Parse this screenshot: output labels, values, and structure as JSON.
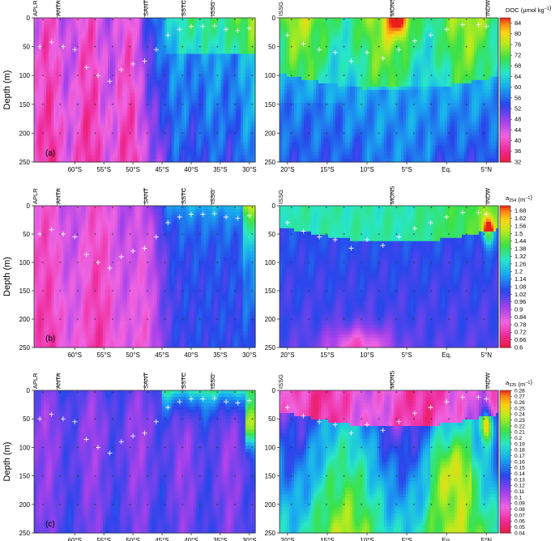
{
  "figure": {
    "ylabel": "Depth (m)",
    "depth_ticks": [
      0,
      50,
      100,
      150,
      200,
      250
    ]
  },
  "chart_data": [
    {
      "type": "heatmap",
      "panel": "(a)",
      "variable": "DOC",
      "colorbar_label_parts": [
        "DOC (",
        "μ",
        "mol kg",
        "−1",
        ")"
      ],
      "colorbar_ticks": [
        84,
        80,
        76,
        72,
        68,
        64,
        60,
        56,
        52,
        48,
        44,
        40,
        36,
        32
      ],
      "vmin": 32,
      "vmax": 86,
      "ylim": [
        0,
        250
      ],
      "sections": [
        {
          "name": "southern-ocean",
          "xlim": [
            -67,
            -29
          ],
          "xticks": [
            {
              "v": -60,
              "label": "60°S"
            },
            {
              "v": -55,
              "label": "55°S"
            },
            {
              "v": -50,
              "label": "50°S"
            },
            {
              "v": -45,
              "label": "45°S"
            },
            {
              "v": -40,
              "label": "40°S"
            },
            {
              "v": -35,
              "label": "35°S"
            },
            {
              "v": -30,
              "label": "30°S"
            }
          ],
          "regions": [
            {
              "label": "APLR",
              "start": -67,
              "end": -63
            },
            {
              "label": "ANTA",
              "start": -63,
              "end": -48
            },
            {
              "label": "SANT",
              "start": -48,
              "end": -41.5
            },
            {
              "label": "SSTC",
              "start": -41.5,
              "end": -36.5
            },
            {
              "label": "ISSG",
              "start": -36.5,
              "end": -29
            }
          ],
          "mld": [
            [
              -66,
              50
            ],
            [
              -64,
              42
            ],
            [
              -62,
              50
            ],
            [
              -60,
              55
            ],
            [
              -58,
              86
            ],
            [
              -56,
              100
            ],
            [
              -54,
              110
            ],
            [
              -52,
              90
            ],
            [
              -50,
              80
            ],
            [
              -48,
              75
            ],
            [
              -46,
              55
            ],
            [
              -44,
              30
            ],
            [
              -42,
              20
            ],
            [
              -40,
              15
            ],
            [
              -38,
              15
            ],
            [
              -36,
              14
            ],
            [
              -34,
              20
            ],
            [
              -32,
              22
            ],
            [
              -30,
              18
            ]
          ]
        },
        {
          "name": "indian-ocean",
          "xlim": [
            -21,
            6.5
          ],
          "xticks": [
            {
              "v": -20,
              "label": "20°S"
            },
            {
              "v": -15,
              "label": "15°S"
            },
            {
              "v": -10,
              "label": "10°S"
            },
            {
              "v": -5,
              "label": "5°S"
            },
            {
              "v": 0,
              "label": "Eq."
            },
            {
              "v": 5,
              "label": "5°N"
            }
          ],
          "regions": [
            {
              "label": "ISSG",
              "start": -21,
              "end": -7
            },
            {
              "label": "MONS",
              "start": -7,
              "end": 5
            },
            {
              "label": "INDW",
              "start": 5,
              "end": 6.5
            }
          ],
          "mld": [
            [
              -20,
              30
            ],
            [
              -18,
              45
            ],
            [
              -16,
              55
            ],
            [
              -14,
              60
            ],
            [
              -12,
              75
            ],
            [
              -10,
              60
            ],
            [
              -8,
              70
            ],
            [
              -6,
              55
            ],
            [
              -4,
              40
            ],
            [
              -2,
              30
            ],
            [
              0,
              20
            ],
            [
              2,
              12
            ],
            [
              4,
              12
            ],
            [
              5,
              15
            ]
          ]
        }
      ]
    },
    {
      "type": "heatmap",
      "panel": "(b)",
      "variable": "a254",
      "colorbar_label_parts": [
        "a",
        "254",
        " (m",
        "−1",
        ")"
      ],
      "colorbar_ticks": [
        1.68,
        1.62,
        1.56,
        1.5,
        1.44,
        1.38,
        1.32,
        1.26,
        1.2,
        1.14,
        1.08,
        1.02,
        0.96,
        0.9,
        0.84,
        0.78,
        0.72,
        0.66,
        0.6
      ],
      "vmin": 0.6,
      "vmax": 1.72,
      "ylim": [
        0,
        250
      ],
      "sections": [
        {
          "name": "southern-ocean",
          "xlim": [
            -67,
            -29
          ],
          "xticks": [
            {
              "v": -60,
              "label": "60°S"
            },
            {
              "v": -55,
              "label": "55°S"
            },
            {
              "v": -50,
              "label": "50°S"
            },
            {
              "v": -45,
              "label": "45°S"
            },
            {
              "v": -40,
              "label": "40°S"
            },
            {
              "v": -35,
              "label": "35°S"
            },
            {
              "v": -30,
              "label": "30°S"
            }
          ],
          "regions": [
            {
              "label": "APLR",
              "start": -67,
              "end": -63
            },
            {
              "label": "ANTA",
              "start": -63,
              "end": -48
            },
            {
              "label": "SANT",
              "start": -48,
              "end": -41.5
            },
            {
              "label": "SSTC",
              "start": -41.5,
              "end": -36.5
            },
            {
              "label": "ISSG",
              "start": -36.5,
              "end": -29
            }
          ],
          "mld": [
            [
              -66,
              50
            ],
            [
              -64,
              42
            ],
            [
              -62,
              50
            ],
            [
              -60,
              55
            ],
            [
              -58,
              86
            ],
            [
              -56,
              100
            ],
            [
              -54,
              110
            ],
            [
              -52,
              90
            ],
            [
              -50,
              80
            ],
            [
              -48,
              75
            ],
            [
              -46,
              55
            ],
            [
              -44,
              30
            ],
            [
              -42,
              20
            ],
            [
              -40,
              15
            ],
            [
              -38,
              15
            ],
            [
              -36,
              14
            ],
            [
              -34,
              20
            ],
            [
              -32,
              22
            ],
            [
              -30,
              18
            ]
          ]
        },
        {
          "name": "indian-ocean",
          "xlim": [
            -21,
            6.5
          ],
          "xticks": [
            {
              "v": -20,
              "label": "20°S"
            },
            {
              "v": -15,
              "label": "15°S"
            },
            {
              "v": -10,
              "label": "10°S"
            },
            {
              "v": -5,
              "label": "5°S"
            },
            {
              "v": 0,
              "label": "Eq."
            },
            {
              "v": 5,
              "label": "5°N"
            }
          ],
          "regions": [
            {
              "label": "ISSG",
              "start": -21,
              "end": -7
            },
            {
              "label": "MONS",
              "start": -7,
              "end": 5
            },
            {
              "label": "INDW",
              "start": 5,
              "end": 6.5
            }
          ],
          "mld": [
            [
              -20,
              30
            ],
            [
              -18,
              45
            ],
            [
              -16,
              55
            ],
            [
              -14,
              60
            ],
            [
              -12,
              75
            ],
            [
              -10,
              60
            ],
            [
              -8,
              70
            ],
            [
              -6,
              55
            ],
            [
              -4,
              40
            ],
            [
              -2,
              30
            ],
            [
              0,
              20
            ],
            [
              2,
              12
            ],
            [
              4,
              12
            ],
            [
              5,
              15
            ]
          ]
        }
      ]
    },
    {
      "type": "heatmap",
      "panel": "(c)",
      "variable": "a325",
      "colorbar_label_parts": [
        "a",
        "325",
        " (m",
        "−1",
        ")"
      ],
      "colorbar_ticks": [
        0.28,
        0.27,
        0.26,
        0.25,
        0.24,
        0.23,
        0.22,
        0.21,
        0.2,
        0.19,
        0.18,
        0.17,
        0.16,
        0.15,
        0.14,
        0.13,
        0.12,
        0.11,
        0.1,
        0.09,
        0.08,
        0.07,
        0.06,
        0.05,
        0.04
      ],
      "vmin": 0.04,
      "vmax": 0.28,
      "ylim": [
        0,
        250
      ],
      "sections": [
        {
          "name": "southern-ocean",
          "xlim": [
            -67,
            -29
          ],
          "xticks": [
            {
              "v": -60,
              "label": "60°S"
            },
            {
              "v": -55,
              "label": "55°S"
            },
            {
              "v": -50,
              "label": "50°S"
            },
            {
              "v": -45,
              "label": "45°S"
            },
            {
              "v": -40,
              "label": "40°S"
            },
            {
              "v": -35,
              "label": "35°S"
            },
            {
              "v": -30,
              "label": "30°S"
            }
          ],
          "regions": [
            {
              "label": "APLR",
              "start": -67,
              "end": -63
            },
            {
              "label": "ANTA",
              "start": -63,
              "end": -48
            },
            {
              "label": "SANT",
              "start": -48,
              "end": -41.5
            },
            {
              "label": "SSTC",
              "start": -41.5,
              "end": -36.5
            },
            {
              "label": "ISSG",
              "start": -36.5,
              "end": -29
            }
          ],
          "mld": [
            [
              -66,
              50
            ],
            [
              -64,
              42
            ],
            [
              -62,
              50
            ],
            [
              -60,
              55
            ],
            [
              -58,
              86
            ],
            [
              -56,
              100
            ],
            [
              -54,
              110
            ],
            [
              -52,
              90
            ],
            [
              -50,
              80
            ],
            [
              -48,
              75
            ],
            [
              -46,
              55
            ],
            [
              -44,
              30
            ],
            [
              -42,
              20
            ],
            [
              -40,
              15
            ],
            [
              -38,
              15
            ],
            [
              -36,
              14
            ],
            [
              -34,
              20
            ],
            [
              -32,
              22
            ],
            [
              -30,
              18
            ]
          ]
        },
        {
          "name": "indian-ocean",
          "xlim": [
            -21,
            6.5
          ],
          "xticks": [
            {
              "v": -20,
              "label": "20°S"
            },
            {
              "v": -15,
              "label": "15°S"
            },
            {
              "v": -10,
              "label": "10°S"
            },
            {
              "v": -5,
              "label": "5°S"
            },
            {
              "v": 0,
              "label": "Eq."
            },
            {
              "v": 5,
              "label": "5°N"
            }
          ],
          "regions": [
            {
              "label": "ISSG",
              "start": -21,
              "end": -7
            },
            {
              "label": "MONS",
              "start": -7,
              "end": 5
            },
            {
              "label": "INDW",
              "start": 5,
              "end": 6.5
            }
          ],
          "mld": [
            [
              -20,
              30
            ],
            [
              -18,
              45
            ],
            [
              -16,
              55
            ],
            [
              -14,
              60
            ],
            [
              -12,
              75
            ],
            [
              -10,
              60
            ],
            [
              -8,
              70
            ],
            [
              -6,
              55
            ],
            [
              -4,
              40
            ],
            [
              -2,
              30
            ],
            [
              0,
              20
            ],
            [
              2,
              12
            ],
            [
              4,
              12
            ],
            [
              5,
              15
            ]
          ]
        }
      ]
    }
  ]
}
